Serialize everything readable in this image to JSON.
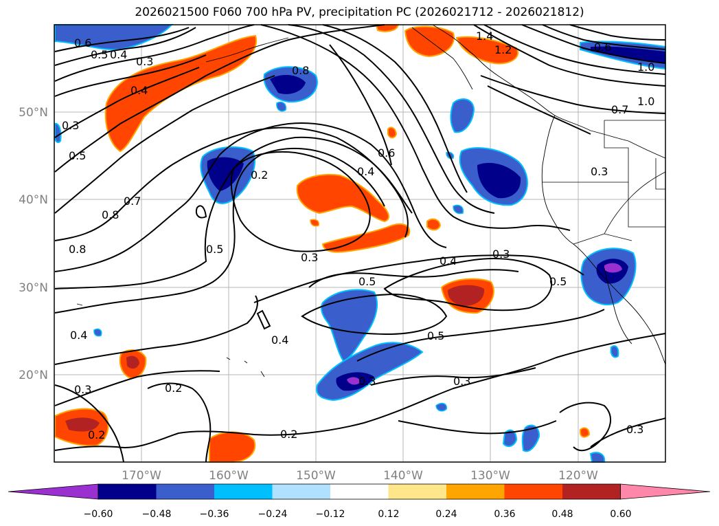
{
  "title": "2026021500 F060 700 hPa PV, precipitation PC (2026021712 - 2026021812)",
  "latitude_labels": [
    "50°N",
    "40°N",
    "30°N",
    "20°N"
  ],
  "longitude_labels": [
    "170°W",
    "160°W",
    "150°W",
    "140°W",
    "130°W",
    "120°W"
  ],
  "contour_labels": [
    "0.6",
    "0.5",
    "0.4",
    "0.3",
    "0.4",
    "0.8",
    "1.4",
    "1.2",
    "0.6",
    "1.0",
    "1.0",
    "0.7",
    "0.3",
    "0.5",
    "0.2",
    "0.4",
    "0.6",
    "0.8",
    "0.7",
    "0.8",
    "0.3",
    "0.5",
    "0.4",
    "0.3",
    "0.5",
    "0.3",
    "0.5",
    "0.4",
    "0.5",
    "0.2",
    "0.3",
    "0.3",
    "0.2",
    "0.2",
    "0.3",
    "0.4",
    "0.3"
  ],
  "colorbar": {
    "ticks": [
      "−0.60",
      "−0.48",
      "−0.36",
      "−0.24",
      "−0.12",
      "0.12",
      "0.24",
      "0.36",
      "0.48",
      "0.60"
    ],
    "colors": [
      "#9b30d0",
      "#00008b",
      "#3a5fcd",
      "#00bfff",
      "#b0e2ff",
      "#ffffff",
      "#ffe68a",
      "#ffa500",
      "#ff4500",
      "#b22222",
      "#ff88aa"
    ]
  },
  "style": {
    "negative_strong": "#00008b",
    "negative_mid": "#3a5fcd",
    "negative_light": "#00bfff",
    "positive_mid": "#ff4500",
    "positive_strong": "#b22222",
    "positive_light": "#ffa500"
  }
}
